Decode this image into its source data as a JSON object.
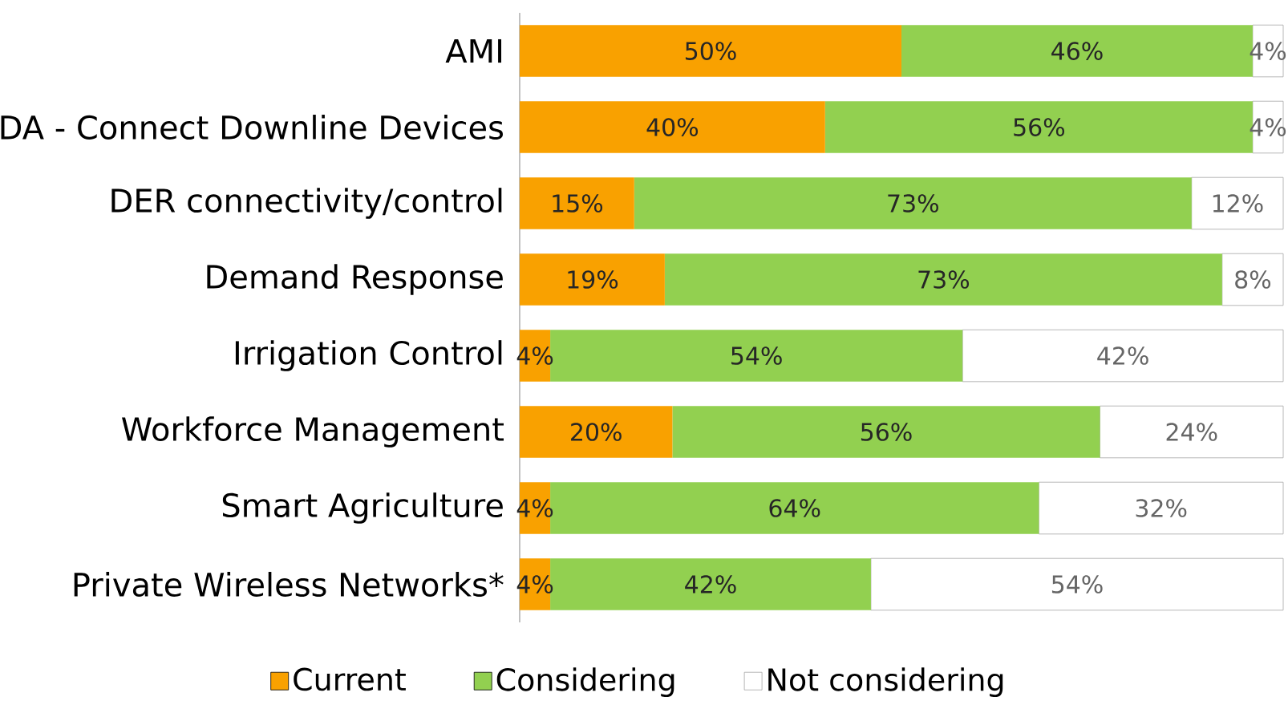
{
  "chart_data": {
    "type": "bar",
    "orientation": "horizontal",
    "stacked": true,
    "legend": "bottom",
    "categories": [
      "AMI",
      "DA - Connect Downline Devices",
      "DER connectivity/control",
      "Demand Response",
      "Irrigation Control",
      "Workforce Management",
      "Smart Agriculture",
      "Private Wireless Networks*"
    ],
    "series": [
      {
        "name": "Current",
        "color": "#f9a100",
        "values": [
          50,
          40,
          15,
          19,
          4,
          20,
          4,
          4
        ],
        "value_labels": [
          "50%",
          "40%",
          "15%",
          "19%",
          "4%",
          "20%",
          "4%",
          "4%"
        ]
      },
      {
        "name": "Considering",
        "color": "#92d050",
        "values": [
          46,
          56,
          73,
          73,
          54,
          56,
          64,
          42
        ],
        "value_labels": [
          "46%",
          "56%",
          "73%",
          "73%",
          "54%",
          "56%",
          "64%",
          "42%"
        ]
      },
      {
        "name": "Not considering",
        "color": "#ffffff",
        "values": [
          4,
          4,
          12,
          8,
          42,
          24,
          32,
          54
        ],
        "value_labels": [
          "4%",
          "4%",
          "12%",
          "8%",
          "42%",
          "24%",
          "32%",
          "54%"
        ]
      }
    ]
  }
}
